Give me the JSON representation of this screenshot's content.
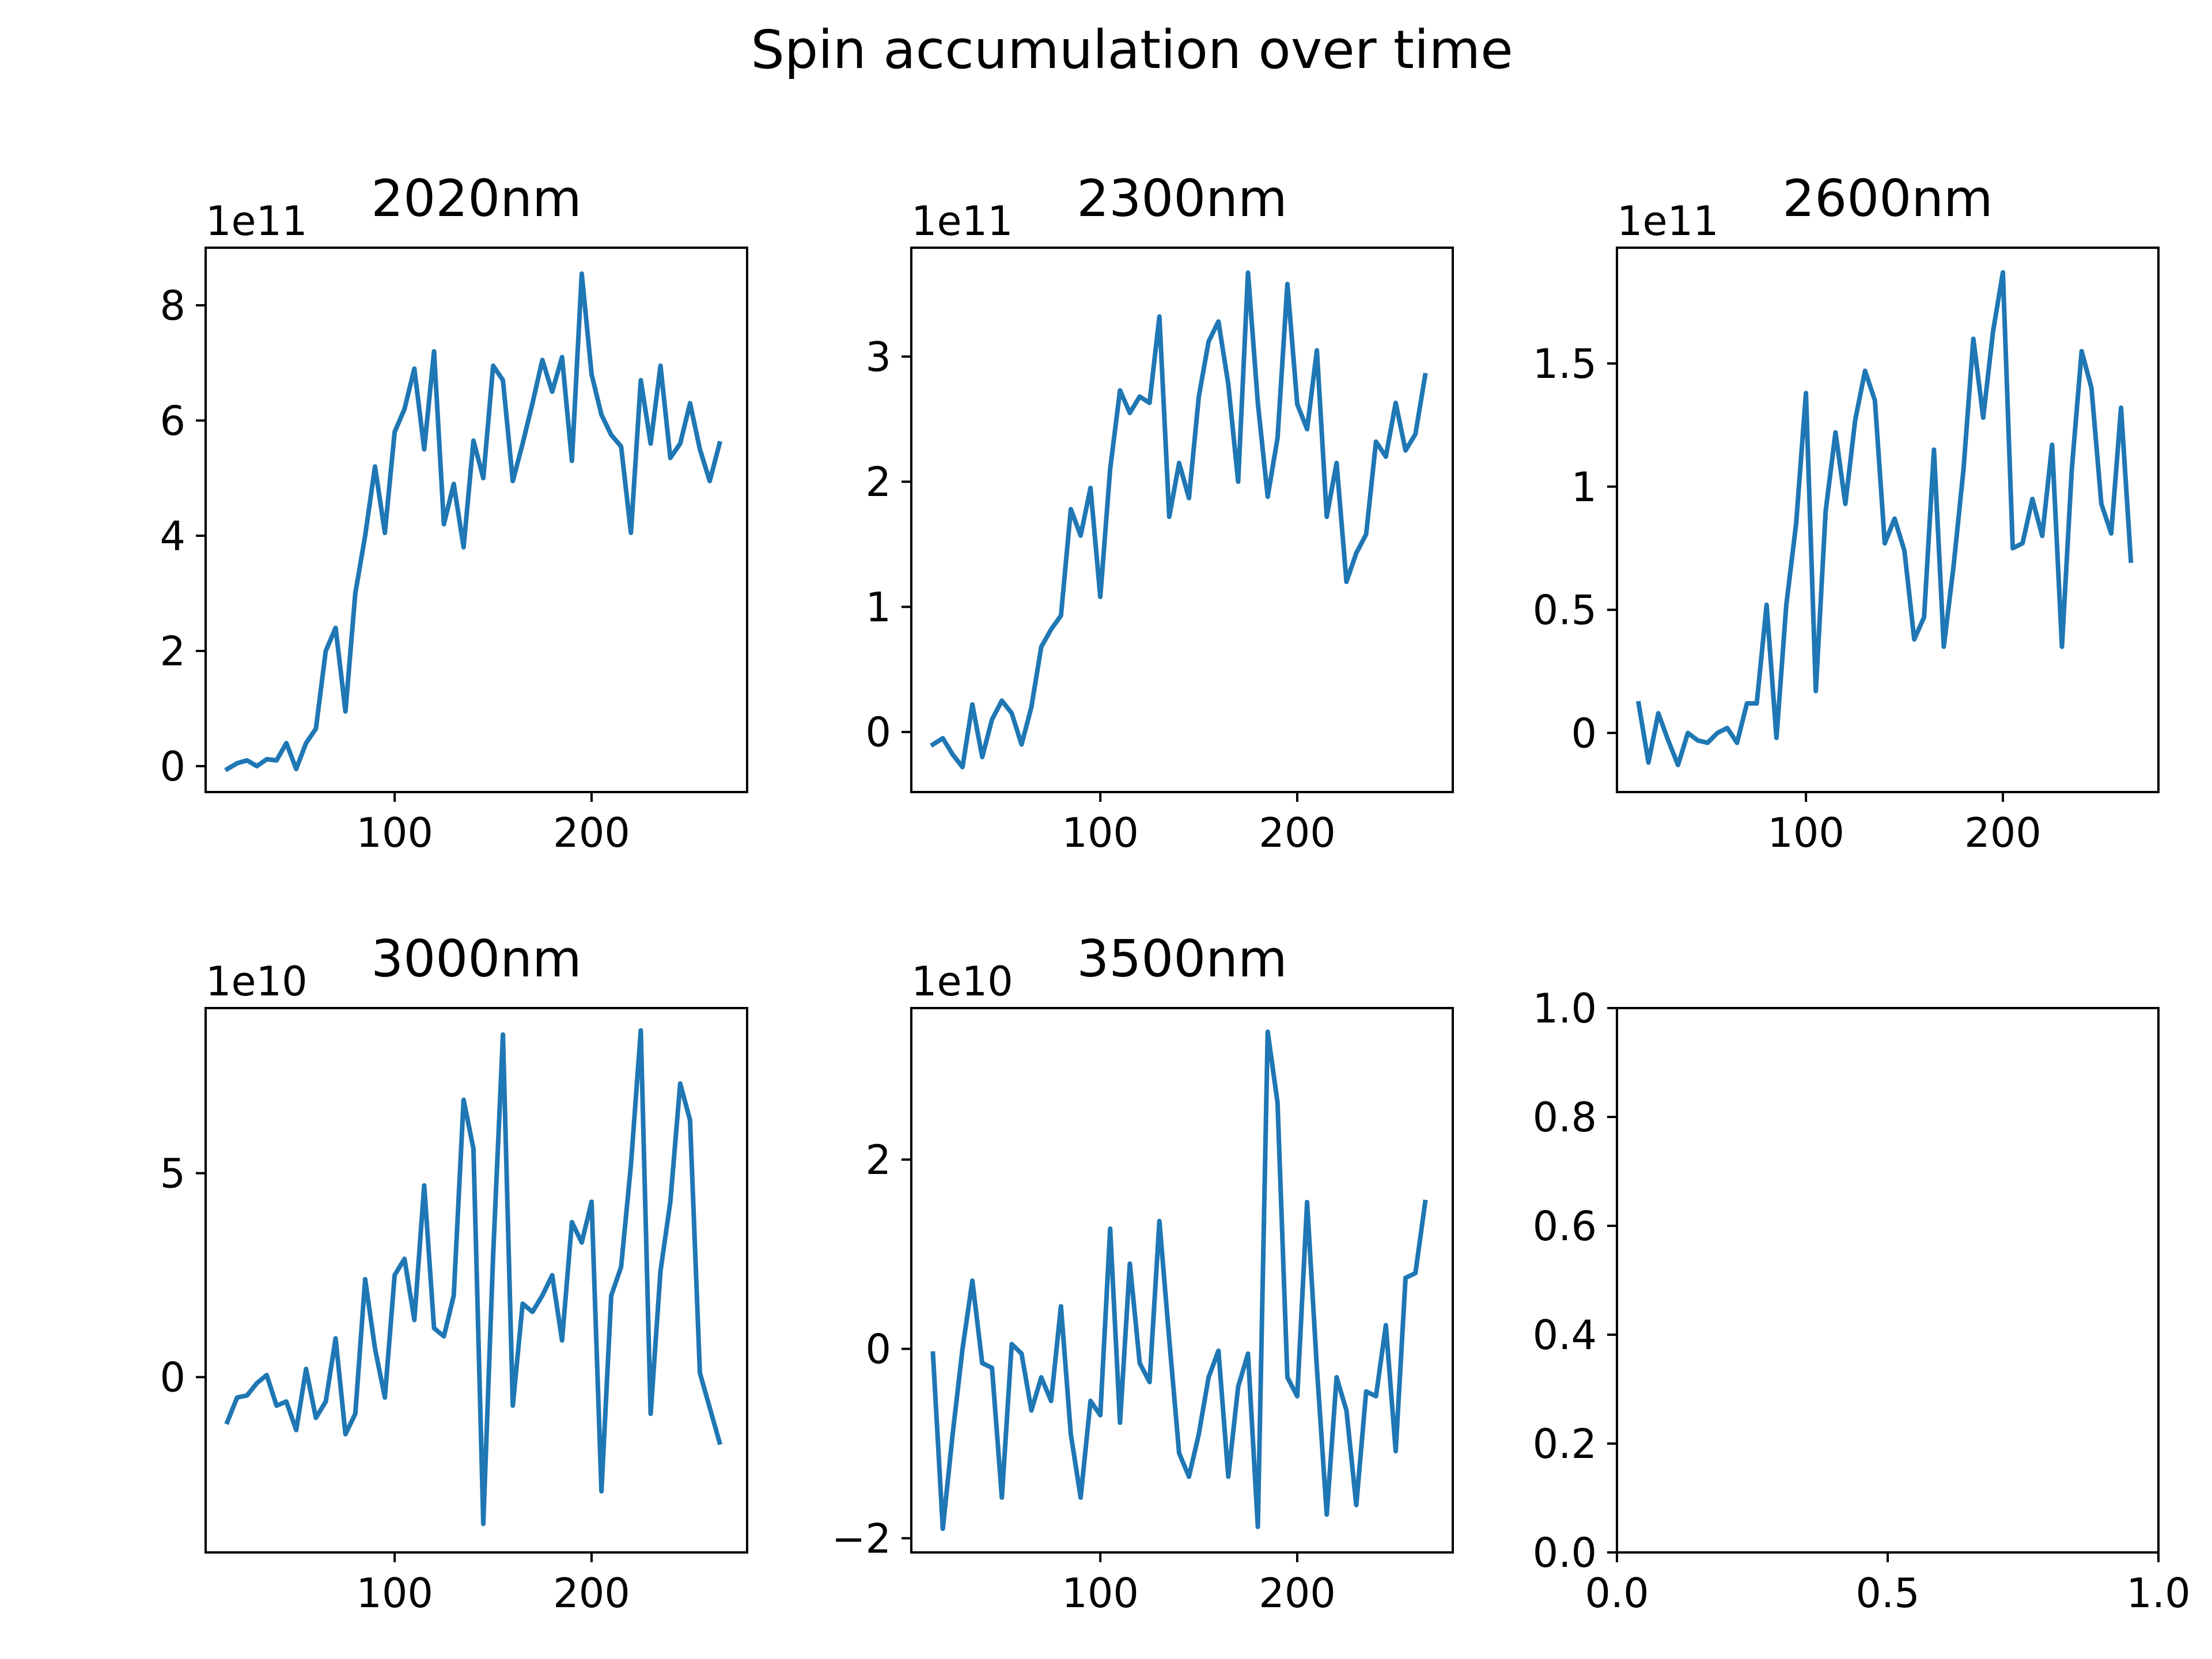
{
  "figure": {
    "title": "Spin accumulation over time",
    "line_color": "#1f77b4"
  },
  "chart_data": [
    {
      "type": "line",
      "title": "2020nm",
      "offset_label": "1e11",
      "xticks": [
        100,
        200
      ],
      "yticks": [
        0,
        2,
        4,
        6,
        8
      ],
      "xlim": [
        4,
        279
      ],
      "ylim": [
        -0.45,
        9.0
      ],
      "series": [
        {
          "x": [
            15,
            20,
            25,
            30,
            35,
            40,
            45,
            50,
            55,
            60,
            65,
            70,
            75,
            80,
            85,
            90,
            95,
            100,
            105,
            110,
            115,
            120,
            125,
            130,
            135,
            140,
            145,
            150,
            155,
            160,
            165,
            170,
            175,
            180,
            185,
            190,
            195,
            200,
            205,
            210,
            215,
            220,
            225,
            230,
            235,
            240,
            245,
            250,
            255,
            260,
            265
          ],
          "y": [
            -0.05,
            0.05,
            0.1,
            0.0,
            0.12,
            0.1,
            0.4,
            -0.05,
            0.4,
            0.65,
            2.0,
            2.4,
            0.95,
            3.0,
            4.0,
            5.2,
            4.05,
            5.8,
            6.2,
            6.9,
            5.5,
            7.2,
            4.2,
            4.9,
            3.8,
            5.65,
            5.0,
            6.95,
            6.7,
            4.95,
            5.6,
            6.3,
            7.05,
            6.5,
            7.1,
            5.3,
            8.55,
            6.8,
            6.1,
            5.75,
            5.55,
            4.05,
            6.7,
            5.6,
            6.95,
            5.35,
            5.6,
            6.3,
            5.5,
            4.95,
            5.6
          ]
        }
      ]
    },
    {
      "type": "line",
      "title": "2300nm",
      "offset_label": "1e11",
      "xticks": [
        100,
        200
      ],
      "yticks": [
        0,
        1,
        2,
        3
      ],
      "xlim": [
        4,
        279
      ],
      "ylim": [
        -0.48,
        3.87
      ],
      "series": [
        {
          "x": [
            15,
            20,
            25,
            30,
            35,
            40,
            45,
            50,
            55,
            60,
            65,
            70,
            75,
            80,
            85,
            90,
            95,
            100,
            105,
            110,
            115,
            120,
            125,
            130,
            135,
            140,
            145,
            150,
            155,
            160,
            165,
            170,
            175,
            180,
            185,
            190,
            195,
            200,
            205,
            210,
            215,
            220,
            225,
            230,
            235,
            240,
            245,
            250,
            255,
            260,
            265
          ],
          "y": [
            -0.1,
            -0.05,
            -0.18,
            -0.28,
            0.22,
            -0.2,
            0.1,
            0.25,
            0.15,
            -0.1,
            0.2,
            0.68,
            0.82,
            0.93,
            1.78,
            1.57,
            1.95,
            1.08,
            2.1,
            2.73,
            2.55,
            2.68,
            2.63,
            3.32,
            1.72,
            2.15,
            1.87,
            2.68,
            3.12,
            3.28,
            2.78,
            2.0,
            3.67,
            2.63,
            1.88,
            2.35,
            3.58,
            2.62,
            2.42,
            3.05,
            1.72,
            2.15,
            1.2,
            1.43,
            1.58,
            2.32,
            2.2,
            2.63,
            2.25,
            2.38,
            2.85
          ]
        }
      ]
    },
    {
      "type": "line",
      "title": "2600nm",
      "offset_label": "1e11",
      "xticks": [
        100,
        200
      ],
      "yticks": [
        0.0,
        0.5,
        1.0,
        1.5
      ],
      "xlim": [
        4,
        279
      ],
      "ylim": [
        -0.24,
        1.97
      ],
      "series": [
        {
          "x": [
            15,
            20,
            25,
            30,
            35,
            40,
            45,
            50,
            55,
            60,
            65,
            70,
            75,
            80,
            85,
            90,
            95,
            100,
            105,
            110,
            115,
            120,
            125,
            130,
            135,
            140,
            145,
            150,
            155,
            160,
            165,
            170,
            175,
            180,
            185,
            190,
            195,
            200,
            205,
            210,
            215,
            220,
            225,
            230,
            235,
            240,
            245,
            250,
            255,
            260,
            265
          ],
          "y": [
            0.12,
            -0.12,
            0.08,
            -0.03,
            -0.13,
            0.0,
            -0.03,
            -0.04,
            0.0,
            0.02,
            -0.04,
            0.12,
            0.12,
            0.52,
            -0.02,
            0.52,
            0.85,
            1.38,
            0.17,
            0.9,
            1.22,
            0.93,
            1.27,
            1.47,
            1.35,
            0.77,
            0.87,
            0.74,
            0.38,
            0.47,
            1.15,
            0.35,
            0.68,
            1.07,
            1.6,
            1.28,
            1.63,
            1.87,
            0.75,
            0.77,
            0.95,
            0.8,
            1.17,
            0.35,
            1.07,
            1.55,
            1.4,
            0.93,
            0.81,
            1.32,
            0.7
          ]
        }
      ]
    },
    {
      "type": "line",
      "title": "3000nm",
      "offset_label": "1e10",
      "xticks": [
        100,
        200
      ],
      "yticks": [
        0,
        5
      ],
      "xlim": [
        4,
        279
      ],
      "ylim": [
        -4.3,
        9.05
      ],
      "series": [
        {
          "x": [
            15,
            20,
            25,
            30,
            35,
            40,
            45,
            50,
            55,
            60,
            65,
            70,
            75,
            80,
            85,
            90,
            95,
            100,
            105,
            110,
            115,
            120,
            125,
            130,
            135,
            140,
            145,
            150,
            155,
            160,
            165,
            170,
            175,
            180,
            185,
            190,
            195,
            200,
            205,
            210,
            215,
            220,
            225,
            230,
            235,
            240,
            245,
            250,
            255,
            260,
            265
          ],
          "y": [
            -1.1,
            -0.5,
            -0.45,
            -0.15,
            0.05,
            -0.7,
            -0.6,
            -1.3,
            0.2,
            -1.0,
            -0.6,
            0.95,
            -1.4,
            -0.9,
            2.4,
            0.7,
            -0.5,
            2.5,
            2.9,
            1.4,
            4.7,
            1.2,
            1.0,
            2.0,
            6.8,
            5.6,
            -3.6,
            3.0,
            8.4,
            -0.7,
            1.8,
            1.6,
            2.0,
            2.5,
            0.9,
            3.8,
            3.3,
            4.3,
            -2.8,
            2.0,
            2.7,
            5.2,
            8.5,
            -0.9,
            2.6,
            4.3,
            7.2,
            6.3,
            0.1,
            -0.75,
            -1.6
          ]
        }
      ]
    },
    {
      "type": "line",
      "title": "3500nm",
      "offset_label": "1e10",
      "xticks": [
        100,
        200
      ],
      "yticks": [
        -2,
        0,
        2
      ],
      "xlim": [
        4,
        279
      ],
      "ylim": [
        -2.15,
        3.6
      ],
      "series": [
        {
          "x": [
            15,
            20,
            25,
            30,
            35,
            40,
            45,
            50,
            55,
            60,
            65,
            70,
            75,
            80,
            85,
            90,
            95,
            100,
            105,
            110,
            115,
            120,
            125,
            130,
            135,
            140,
            145,
            150,
            155,
            160,
            165,
            170,
            175,
            180,
            185,
            190,
            195,
            200,
            205,
            210,
            215,
            220,
            225,
            230,
            235,
            240,
            245,
            250,
            255,
            260,
            265
          ],
          "y": [
            -0.05,
            -1.9,
            -0.9,
            0.0,
            0.72,
            -0.15,
            -0.2,
            -1.57,
            0.05,
            -0.05,
            -0.65,
            -0.3,
            -0.55,
            0.45,
            -0.9,
            -1.57,
            -0.55,
            -0.7,
            1.27,
            -0.78,
            0.9,
            -0.15,
            -0.35,
            1.35,
            0.1,
            -1.1,
            -1.35,
            -0.9,
            -0.3,
            -0.02,
            -1.35,
            -0.4,
            -0.05,
            -1.88,
            3.35,
            2.6,
            -0.3,
            -0.5,
            1.55,
            -0.2,
            -1.75,
            -0.3,
            -0.65,
            -1.65,
            -0.45,
            -0.5,
            0.25,
            -1.08,
            0.75,
            0.8,
            1.55
          ]
        }
      ]
    },
    {
      "type": "line",
      "title": "",
      "offset_label": "",
      "xticks": [
        0.0,
        0.5,
        1.0
      ],
      "xtick_labels": [
        "0.0",
        "0.5",
        "1.0"
      ],
      "yticks": [
        0.0,
        0.2,
        0.4,
        0.6,
        0.8,
        1.0
      ],
      "ytick_labels": [
        "0.0",
        "0.2",
        "0.4",
        "0.6",
        "0.8",
        "1.0"
      ],
      "xlim": [
        0,
        1
      ],
      "ylim": [
        0,
        1
      ],
      "series": []
    }
  ]
}
